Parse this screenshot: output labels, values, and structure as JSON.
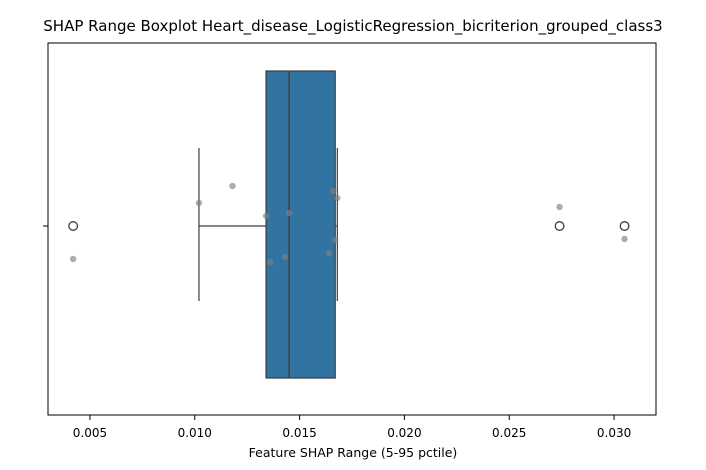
{
  "chart_data": {
    "type": "boxplot",
    "title": "SHAP Range Boxplot Heart_disease_LogisticRegression_bicriterion_grouped_class3",
    "xlabel": "Feature SHAP Range (5-95 pctile)",
    "ylabel": "",
    "xlim": [
      0.003,
      0.032
    ],
    "xticks": [
      0.005,
      0.01,
      0.015,
      0.02,
      0.025,
      0.03
    ],
    "xtick_labels": [
      "0.005",
      "0.010",
      "0.015",
      "0.020",
      "0.025",
      "0.030"
    ],
    "grid": false,
    "orientation": "horizontal",
    "box": {
      "q1": 0.0134,
      "median": 0.0145,
      "q3": 0.0167,
      "whisker_low": 0.0102,
      "whisker_high": 0.0168,
      "color": "#3274a1"
    },
    "outliers": [
      0.0042,
      0.0274,
      0.0305
    ],
    "points": [
      0.0042,
      0.0102,
      0.0118,
      0.0134,
      0.0136,
      0.0143,
      0.0145,
      0.0164,
      0.0166,
      0.0167,
      0.0168,
      0.0274,
      0.0305
    ],
    "point_color": "#808080"
  }
}
